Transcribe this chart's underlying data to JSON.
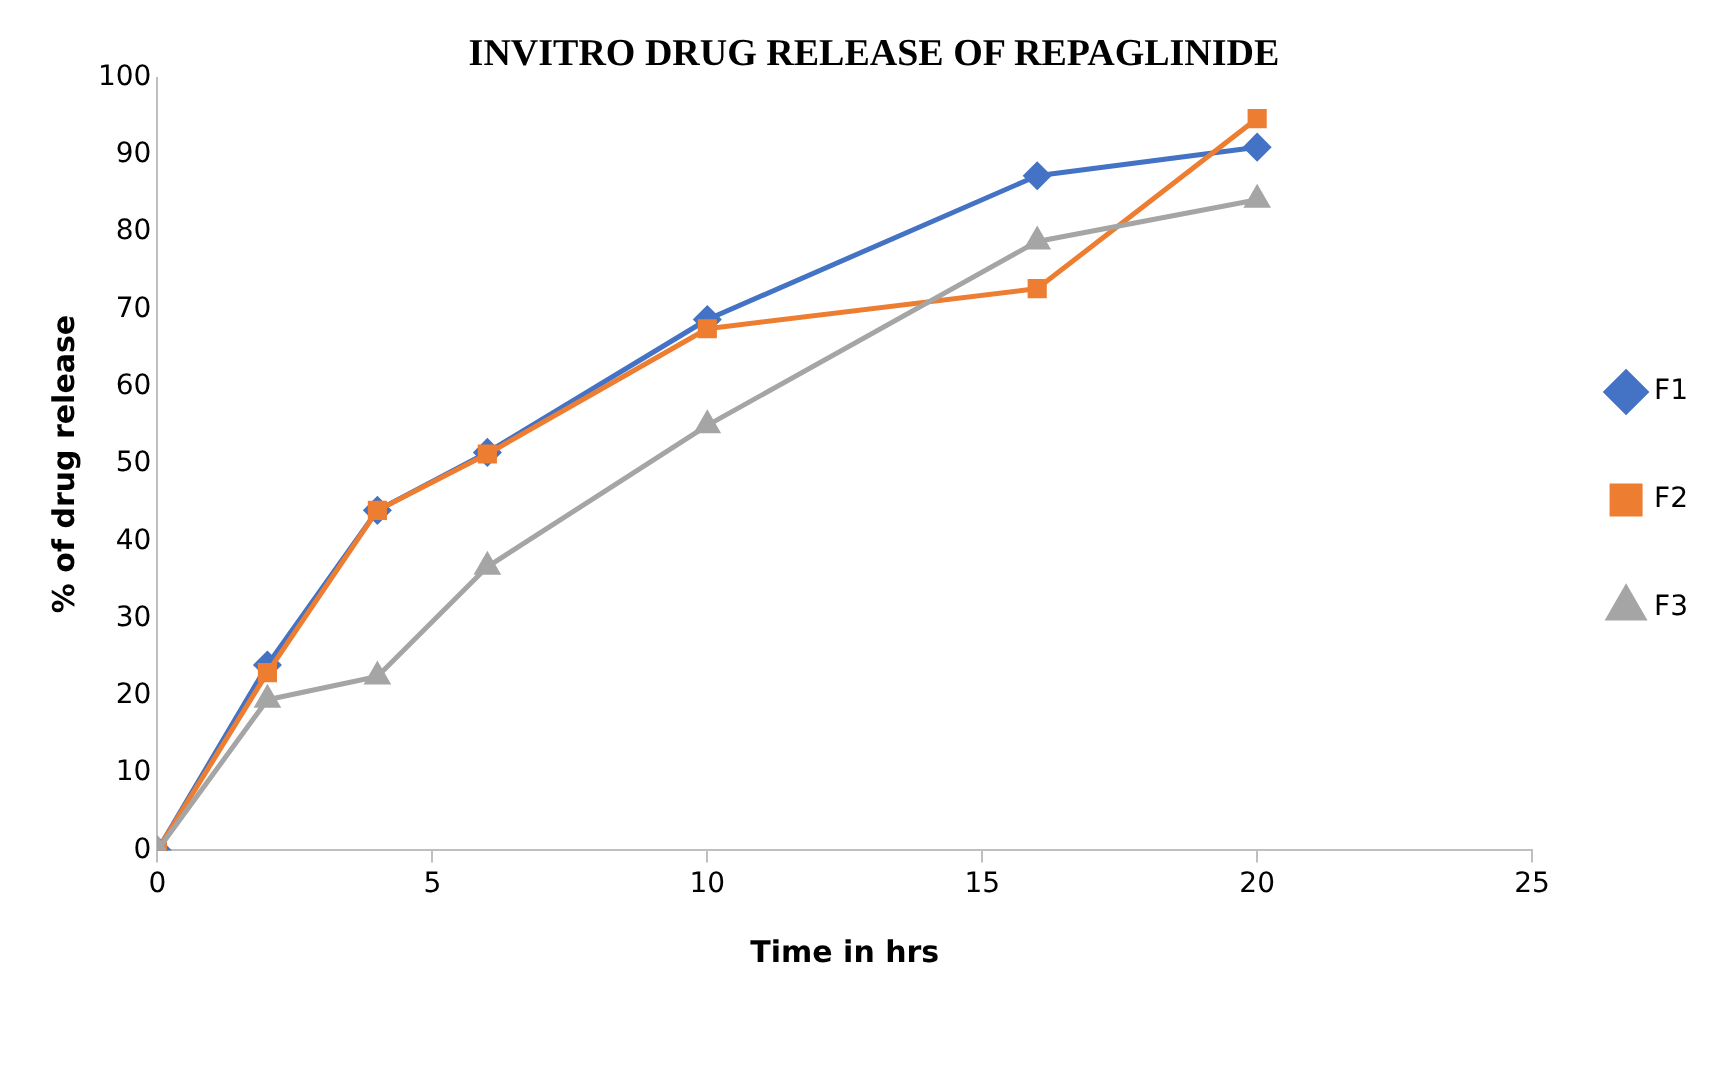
{
  "chart_data": {
    "type": "line",
    "title": "INVITRO DRUG RELEASE OF REPAGLINIDE",
    "xlabel": "Time in hrs",
    "ylabel": "% of drug release",
    "x": [
      0,
      2,
      4,
      6,
      10,
      16,
      20
    ],
    "series": [
      {
        "name": "F1",
        "color": "#4472c4",
        "marker": "diamond",
        "values": [
          0,
          24,
          44,
          51.5,
          68.7,
          87.3,
          91
        ]
      },
      {
        "name": "F2",
        "color": "#ed7d31",
        "marker": "square",
        "values": [
          0,
          23,
          44,
          51.3,
          67.5,
          72.7,
          94.7
        ]
      },
      {
        "name": "F3",
        "color": "#a5a5a5",
        "marker": "triangle",
        "values": [
          0,
          19.5,
          22.5,
          36.7,
          55,
          78.8,
          84.2
        ]
      }
    ],
    "xlim": [
      0,
      25
    ],
    "xticks": [
      0,
      5,
      10,
      15,
      20,
      25
    ],
    "ylim": [
      0,
      100
    ],
    "yticks": [
      0,
      10,
      20,
      30,
      40,
      50,
      60,
      70,
      80,
      90,
      100
    ],
    "grid": false,
    "legend": "right"
  }
}
